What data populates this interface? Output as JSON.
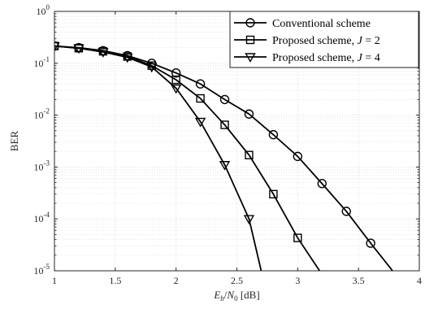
{
  "chart_data": {
    "type": "line",
    "title": "",
    "xlabel": "E_b/N_0 [dB]",
    "ylabel": "BER",
    "xlim": [
      1,
      4
    ],
    "ylim": [
      1e-05,
      1
    ],
    "yscale": "log",
    "grid": true,
    "minor_grid": true,
    "legend_position": "top-right",
    "x_ticks": [
      1,
      1.5,
      2,
      2.5,
      3,
      3.5,
      4
    ],
    "x_tick_labels": [
      "1",
      "1.5",
      "2",
      "2.5",
      "3",
      "3.5",
      "4"
    ],
    "y_ticks": [
      {
        "value": 1,
        "base": "10",
        "exp": "0"
      },
      {
        "value": 0.1,
        "base": "10",
        "exp": "-1"
      },
      {
        "value": 0.01,
        "base": "10",
        "exp": "-2"
      },
      {
        "value": 0.001,
        "base": "10",
        "exp": "-3"
      },
      {
        "value": 0.0001,
        "base": "10",
        "exp": "-4"
      },
      {
        "value": 1e-05,
        "base": "10",
        "exp": "-5"
      }
    ],
    "series": [
      {
        "name": "Conventional scheme",
        "legend_prefix": "Conventional scheme",
        "legend_var": "",
        "legend_value": "",
        "marker": "circle",
        "x": [
          1,
          1.2,
          1.4,
          1.6,
          1.8,
          2.0,
          2.2,
          2.4,
          2.6,
          2.8,
          3.0,
          3.2,
          3.4,
          3.6,
          3.78
        ],
        "y": [
          0.215,
          0.2,
          0.175,
          0.14,
          0.1,
          0.065,
          0.04,
          0.02,
          0.0105,
          0.0042,
          0.0016,
          0.00048,
          0.00014,
          3.4e-05,
          1e-05
        ],
        "marker_points": 14
      },
      {
        "name": "Proposed scheme, J = 2",
        "legend_prefix": "Proposed scheme, ",
        "legend_var": "J",
        "legend_value": " = 2",
        "marker": "square",
        "x": [
          1,
          1.2,
          1.4,
          1.6,
          1.8,
          2.0,
          2.2,
          2.4,
          2.6,
          2.8,
          3.0,
          3.18
        ],
        "y": [
          0.215,
          0.195,
          0.17,
          0.135,
          0.09,
          0.048,
          0.021,
          0.0065,
          0.0017,
          0.0003,
          4.3e-05,
          1e-05
        ],
        "marker_points": 11
      },
      {
        "name": "Proposed scheme, J = 4",
        "legend_prefix": "Proposed scheme, ",
        "legend_var": "J",
        "legend_value": " = 4",
        "marker": "triangle-down",
        "x": [
          1,
          1.2,
          1.4,
          1.6,
          1.8,
          2.0,
          2.2,
          2.4,
          2.6,
          2.7
        ],
        "y": [
          0.215,
          0.195,
          0.165,
          0.13,
          0.085,
          0.033,
          0.0075,
          0.0011,
          0.0001,
          1e-05
        ],
        "marker_points": 9
      }
    ]
  },
  "colors": {
    "line": "#000000",
    "grid": "#d9d9d9",
    "axis": "#262626",
    "background": "#ffffff"
  }
}
